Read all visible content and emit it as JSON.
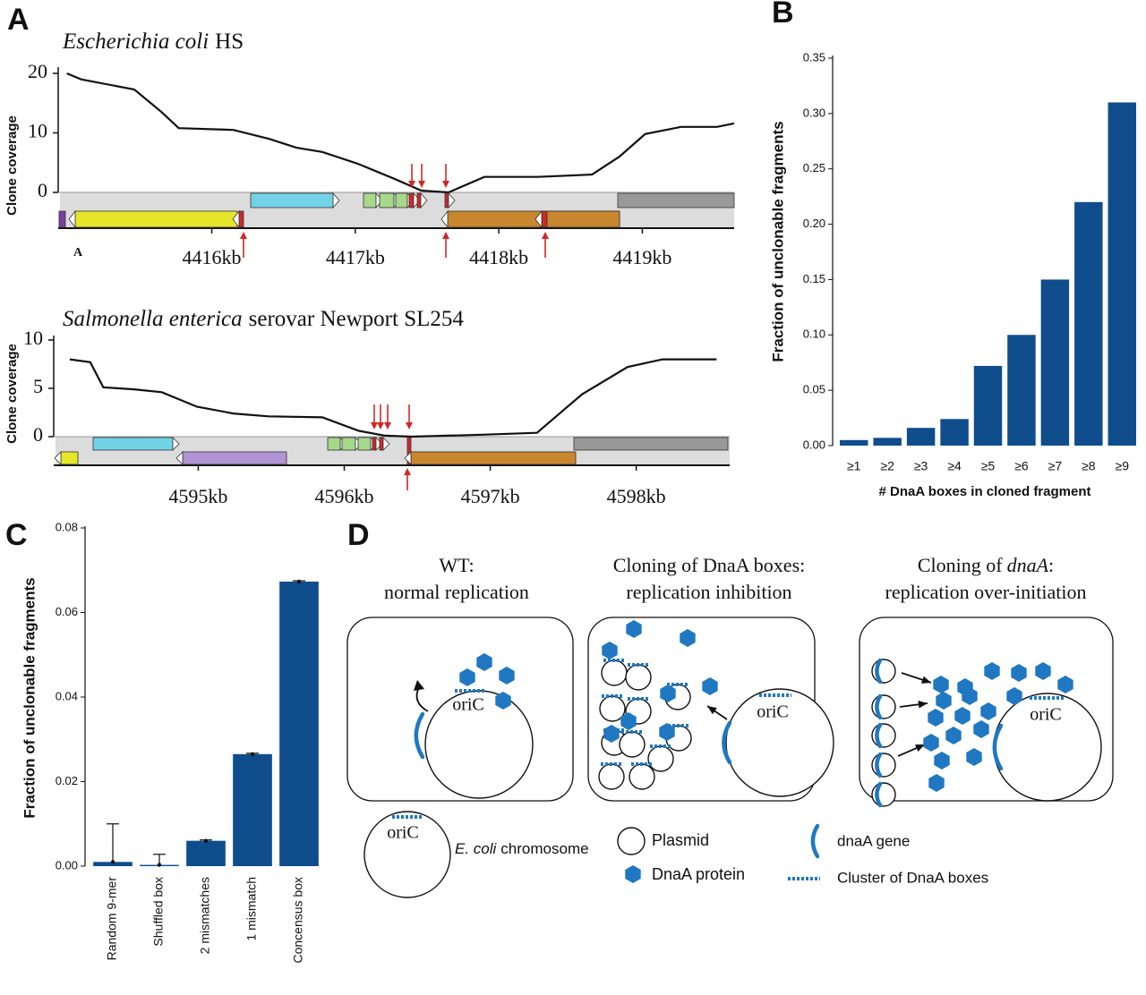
{
  "panel_labels": [
    "A",
    "B",
    "C",
    "D"
  ],
  "panel_a_note": "A",
  "chart_data": [
    {
      "type": "line",
      "title": [
        "Escherichia coli",
        "HS"
      ],
      "ylabel": "Clone coverage",
      "color": "#111111",
      "x": [
        4414.99,
        4415.09,
        4415.46,
        4415.65,
        4415.77,
        4416.15,
        4416.4,
        4416.59,
        4416.77,
        4417.02,
        4417.27,
        4417.46,
        4417.65,
        4417.9,
        4418.27,
        4418.65,
        4418.84,
        4419.02,
        4419.27,
        4419.52,
        4419.64
      ],
      "values": [
        20,
        19,
        17.3,
        13.5,
        10.8,
        10.5,
        9,
        7.5,
        6.8,
        4.8,
        2.3,
        0.3,
        0,
        2.6,
        2.6,
        3,
        6,
        9.8,
        11,
        11,
        11.6
      ],
      "xlim": [
        4414.93,
        4419.64
      ],
      "ylim": [
        0,
        20
      ],
      "yticks": [
        0,
        10,
        20
      ],
      "xticks": [
        {
          "value": 4416,
          "label": "4416kb"
        },
        {
          "value": 4417,
          "label": "4417kb"
        },
        {
          "value": 4418,
          "label": "4418kb"
        },
        {
          "value": 4419,
          "label": "4419kb"
        }
      ]
    },
    {
      "type": "line",
      "title": [
        "Salmonella enterica",
        "serovar Newport SL254"
      ],
      "ylabel": "Clone coverage",
      "color": "#111111",
      "x": [
        4594.12,
        4594.26,
        4594.35,
        4594.56,
        4594.75,
        4594.99,
        4595.24,
        4595.48,
        4595.85,
        4596.1,
        4596.28,
        4596.46,
        4596.95,
        4597.32,
        4597.63,
        4597.94,
        4598.18,
        4598.55
      ],
      "values": [
        8,
        7.7,
        5.1,
        4.9,
        4.6,
        3.1,
        2.4,
        2.1,
        2,
        0.6,
        0.1,
        0,
        0.2,
        0.4,
        4.4,
        7.2,
        8,
        8
      ],
      "xlim": [
        4594.01,
        4598.64
      ],
      "ylim": [
        0,
        10
      ],
      "yticks": [
        0,
        5,
        10
      ],
      "xticks": [
        {
          "value": 4595,
          "label": "4595kb"
        },
        {
          "value": 4596,
          "label": "4596kb"
        },
        {
          "value": 4597,
          "label": "4597kb"
        },
        {
          "value": 4598,
          "label": "4598kb"
        }
      ]
    },
    {
      "type": "bar",
      "xlabel": "# DnaA boxes in cloned fragment",
      "ylabel": "Fraction of unclonable fragments",
      "color": "#0f4d8c",
      "categories": [
        "≥1",
        "≥2",
        "≥3",
        "≥4",
        "≥5",
        "≥6",
        "≥7",
        "≥8",
        "≥9"
      ],
      "values": [
        0.005,
        0.007,
        0.016,
        0.024,
        0.072,
        0.1,
        0.15,
        0.22,
        0.31
      ],
      "ylim": [
        0,
        0.35
      ],
      "yticks": [
        {
          "value": 0,
          "label": "0.00"
        },
        {
          "value": 0.05,
          "label": "0.05"
        },
        {
          "value": 0.1,
          "label": "0.10"
        },
        {
          "value": 0.15,
          "label": "0.15"
        },
        {
          "value": 0.2,
          "label": "0.20"
        },
        {
          "value": 0.25,
          "label": "0.25"
        },
        {
          "value": 0.3,
          "label": "0.30"
        },
        {
          "value": 0.35,
          "label": "0.35"
        }
      ]
    },
    {
      "type": "bar",
      "ylabel": "Fraction of unclonable fragments",
      "color": "#0f4d8c",
      "categories": [
        "Random 9-mer",
        "Shuffled box",
        "2 mismatches",
        "1 mismatch",
        "Concensus box"
      ],
      "values": [
        0.001,
        0.0003,
        0.006,
        0.0265,
        0.0673
      ],
      "errors": [
        0.009,
        0.0025,
        0.0002,
        0.0002,
        0.0002
      ],
      "ylim": [
        0,
        0.08
      ],
      "yticks": [
        {
          "value": 0,
          "label": "0.00"
        },
        {
          "value": 0.02,
          "label": "0.02"
        },
        {
          "value": 0.04,
          "label": "0.04"
        },
        {
          "value": 0.06,
          "label": "0.06"
        },
        {
          "value": 0.08,
          "label": "0.08"
        }
      ]
    }
  ],
  "diagram": {
    "titles": [
      [
        [
          "WT:"
        ],
        [
          "normal replication"
        ]
      ],
      [
        [
          "Cloning of DnaA boxes:"
        ],
        [
          "replication inhibition"
        ]
      ],
      [
        [
          "Cloning of",
          "dnaA",
          ":"
        ],
        [
          "replication over-initiation"
        ]
      ]
    ],
    "ori_label": "oriC",
    "legend": {
      "chromosome": [
        "E. coli",
        "chromosome"
      ],
      "plasmid": "Plasmid",
      "protein": "DnaA protein",
      "gene": "dnaA gene",
      "cluster": "Cluster of DnaA boxes"
    }
  }
}
